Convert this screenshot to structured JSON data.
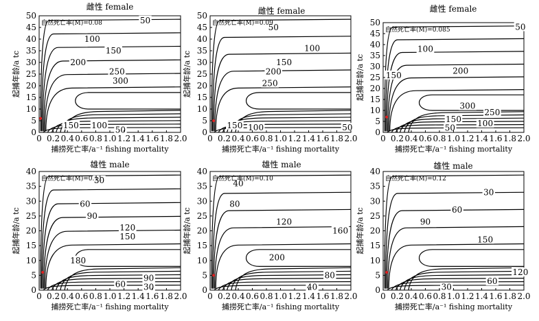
{
  "xlabel": "捕捞死亡率/a⁻¹ fishing mortality",
  "ylabel": "起捕年龄/a tc",
  "chart_data": [
    {
      "type": "line",
      "title": "雌性 female",
      "annotation": "自然死亡率(M)=0.08",
      "xlim": [
        0,
        2.0
      ],
      "ylim": [
        0,
        50
      ],
      "x_ticks": [
        "0",
        "0.2",
        "0.4",
        "0.6",
        "0.8",
        "1.0",
        "1.2",
        "1.4",
        "1.6",
        "1.8",
        "2.0"
      ],
      "y_ticks": [
        0,
        5,
        10,
        15,
        20,
        25,
        30,
        35,
        40,
        45,
        50
      ],
      "contour_levels": [
        50,
        100,
        150,
        200,
        250,
        300
      ],
      "upper_labels": [
        {
          "text": "50",
          "x": 1.5,
          "y": 48
        },
        {
          "text": "100",
          "x": 0.75,
          "y": 40
        },
        {
          "text": "150",
          "x": 1.05,
          "y": 35
        },
        {
          "text": "200",
          "x": 0.55,
          "y": 30
        },
        {
          "text": "250",
          "x": 1.1,
          "y": 26
        },
        {
          "text": "300",
          "x": 1.15,
          "y": 22
        }
      ],
      "lower_labels": [
        {
          "text": "150",
          "x": 0.45,
          "y": 3
        },
        {
          "text": "100",
          "x": 0.85,
          "y": 3
        },
        {
          "text": "50",
          "x": 1.15,
          "y": 1
        }
      ],
      "optimum": {
        "x": 0.02,
        "y": 6
      }
    },
    {
      "type": "line",
      "title": "雌性 female",
      "annotation": "自然死亡率(M)=0.09",
      "xlim": [
        0,
        2.0
      ],
      "ylim": [
        0,
        50
      ],
      "x_ticks": [
        "0",
        "0.2",
        "0.4",
        "0.6",
        "0.8",
        "1.0",
        "1.2",
        "1.4",
        "1.6",
        "1.8",
        "2.0"
      ],
      "y_ticks": [
        0,
        5,
        10,
        15,
        20,
        25,
        30,
        35,
        40,
        45,
        50
      ],
      "contour_levels": [
        50,
        100,
        150,
        200,
        250
      ],
      "upper_labels": [
        {
          "text": "50",
          "x": 0.9,
          "y": 45
        },
        {
          "text": "100",
          "x": 1.45,
          "y": 36
        },
        {
          "text": "150",
          "x": 1.05,
          "y": 30
        },
        {
          "text": "200",
          "x": 0.9,
          "y": 26
        },
        {
          "text": "250",
          "x": 0.85,
          "y": 21
        }
      ],
      "lower_labels": [
        {
          "text": "150",
          "x": 0.35,
          "y": 3
        },
        {
          "text": "100",
          "x": 0.65,
          "y": 2
        },
        {
          "text": "50",
          "x": 1.95,
          "y": 2
        }
      ],
      "optimum": {
        "x": 0.05,
        "y": 5
      }
    },
    {
      "type": "line",
      "title": "雌性 female",
      "annotation": "自然死亡率(M)=0.085",
      "xlim": [
        0,
        2.0
      ],
      "ylim": [
        0,
        50
      ],
      "x_ticks": [
        "0",
        "0.2",
        "0.4",
        "0.6",
        "0.8",
        "1.0",
        "1.2",
        "1.4",
        "1.6",
        "1.8",
        "2.0"
      ],
      "y_ticks": [
        0,
        5,
        10,
        15,
        20,
        25,
        30,
        35,
        40,
        45,
        50
      ],
      "contour_levels": [
        50,
        100,
        150,
        200,
        250,
        300
      ],
      "upper_labels": [
        {
          "text": "50",
          "x": 1.95,
          "y": 48
        },
        {
          "text": "100",
          "x": 0.6,
          "y": 38
        },
        {
          "text": "150",
          "x": 0.15,
          "y": 26
        },
        {
          "text": "200",
          "x": 1.1,
          "y": 28
        }
      ],
      "lower_labels": [
        {
          "text": "300",
          "x": 1.2,
          "y": 12
        },
        {
          "text": "250",
          "x": 1.55,
          "y": 9
        },
        {
          "text": "150",
          "x": 1.0,
          "y": 6
        },
        {
          "text": "100",
          "x": 1.45,
          "y": 4
        },
        {
          "text": "50",
          "x": 0.95,
          "y": 2
        }
      ],
      "optimum": {
        "x": 0.05,
        "y": 7
      }
    },
    {
      "type": "line",
      "title": "雄性 male",
      "annotation": "自然死亡率(M)=0.11",
      "xlim": [
        0,
        2.0
      ],
      "ylim": [
        0,
        40
      ],
      "x_ticks": [
        "0",
        "0.2",
        "0.4",
        "0.6",
        "0.8",
        "1.0",
        "1.2",
        "1.4",
        "1.6",
        "1.8",
        "2.0"
      ],
      "y_ticks": [
        0,
        5,
        10,
        15,
        20,
        25,
        30,
        35,
        40
      ],
      "contour_levels": [
        30,
        60,
        90,
        120,
        150,
        180
      ],
      "upper_labels": [
        {
          "text": "30",
          "x": 0.85,
          "y": 37
        },
        {
          "text": "60",
          "x": 0.65,
          "y": 29
        },
        {
          "text": "90",
          "x": 0.75,
          "y": 25
        },
        {
          "text": "120",
          "x": 1.25,
          "y": 21
        },
        {
          "text": "150",
          "x": 1.25,
          "y": 18
        },
        {
          "text": "180",
          "x": 0.55,
          "y": 10
        }
      ],
      "lower_labels": [
        {
          "text": "90",
          "x": 1.55,
          "y": 4
        },
        {
          "text": "60",
          "x": 1.15,
          "y": 2
        },
        {
          "text": "30",
          "x": 1.55,
          "y": 1
        }
      ],
      "optimum": {
        "x": 0.05,
        "y": 6
      }
    },
    {
      "type": "line",
      "title": "雄性 male",
      "annotation": "自然死亡率(M)=0.10",
      "xlim": [
        0,
        2.0
      ],
      "ylim": [
        0,
        40
      ],
      "x_ticks": [
        "0",
        "0.2",
        "0.4",
        "0.6",
        "0.8",
        "1.0",
        "1.2",
        "1.4",
        "1.6",
        "1.8",
        "2.0"
      ],
      "y_ticks": [
        0,
        5,
        10,
        15,
        20,
        25,
        30,
        35,
        40
      ],
      "contour_levels": [
        40,
        80,
        120,
        160,
        200
      ],
      "upper_labels": [
        {
          "text": "40",
          "x": 0.4,
          "y": 36
        },
        {
          "text": "80",
          "x": 0.35,
          "y": 29
        },
        {
          "text": "120",
          "x": 1.05,
          "y": 23
        },
        {
          "text": "160",
          "x": 1.85,
          "y": 20
        },
        {
          "text": "200",
          "x": 0.95,
          "y": 11
        }
      ],
      "lower_labels": [
        {
          "text": "80",
          "x": 1.7,
          "y": 5
        },
        {
          "text": "40",
          "x": 1.45,
          "y": 1
        }
      ],
      "optimum": {
        "x": 0.05,
        "y": 5
      }
    },
    {
      "type": "line",
      "title": "雄性 male",
      "annotation": "自然死亡率(M)=0.12",
      "xlim": [
        0,
        2.0
      ],
      "ylim": [
        0,
        40
      ],
      "x_ticks": [
        "0",
        "0.2",
        "0.4",
        "0.6",
        "0.8",
        "1.0",
        "1.2",
        "1.4",
        "1.6",
        "1.8",
        "2.0"
      ],
      "y_ticks": [
        0,
        5,
        10,
        15,
        20,
        25,
        30,
        35,
        40
      ],
      "contour_levels": [
        30,
        60,
        90,
        120,
        150
      ],
      "upper_labels": [
        {
          "text": "30",
          "x": 1.5,
          "y": 33
        },
        {
          "text": "60",
          "x": 1.05,
          "y": 27
        },
        {
          "text": "90",
          "x": 0.6,
          "y": 23
        },
        {
          "text": "150",
          "x": 1.45,
          "y": 17
        }
      ],
      "lower_labels": [
        {
          "text": "120",
          "x": 1.95,
          "y": 6
        },
        {
          "text": "60",
          "x": 1.55,
          "y": 3
        },
        {
          "text": "30",
          "x": 0.9,
          "y": 1
        }
      ],
      "optimum": {
        "x": 0.05,
        "y": 6
      }
    }
  ]
}
